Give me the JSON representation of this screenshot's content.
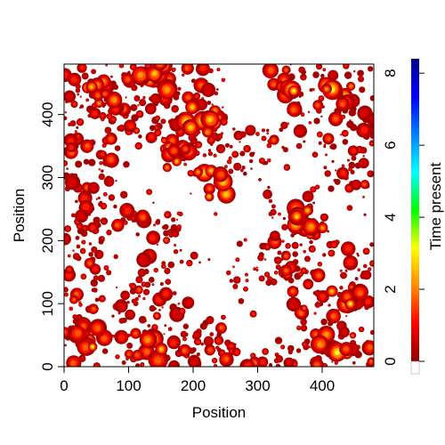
{
  "chart_data": {
    "type": "heatmap",
    "xlabel": "Position",
    "ylabel": "Position",
    "xlim": [
      0,
      480
    ],
    "ylim": [
      0,
      480
    ],
    "x_ticks": [
      0,
      100,
      200,
      300,
      400
    ],
    "y_ticks": [
      0,
      100,
      200,
      300,
      400
    ],
    "colorbar": {
      "label": "Time present",
      "range": [
        0,
        8.4
      ],
      "ticks": [
        0,
        2,
        4,
        6,
        8
      ],
      "colors": [
        "#8b0000",
        "#ff0000",
        "#ff8c00",
        "#ffff00",
        "#00ff00",
        "#00ffff",
        "#0080ff",
        "#0000ff",
        "#00008b"
      ]
    },
    "background": "#ffffff"
  }
}
